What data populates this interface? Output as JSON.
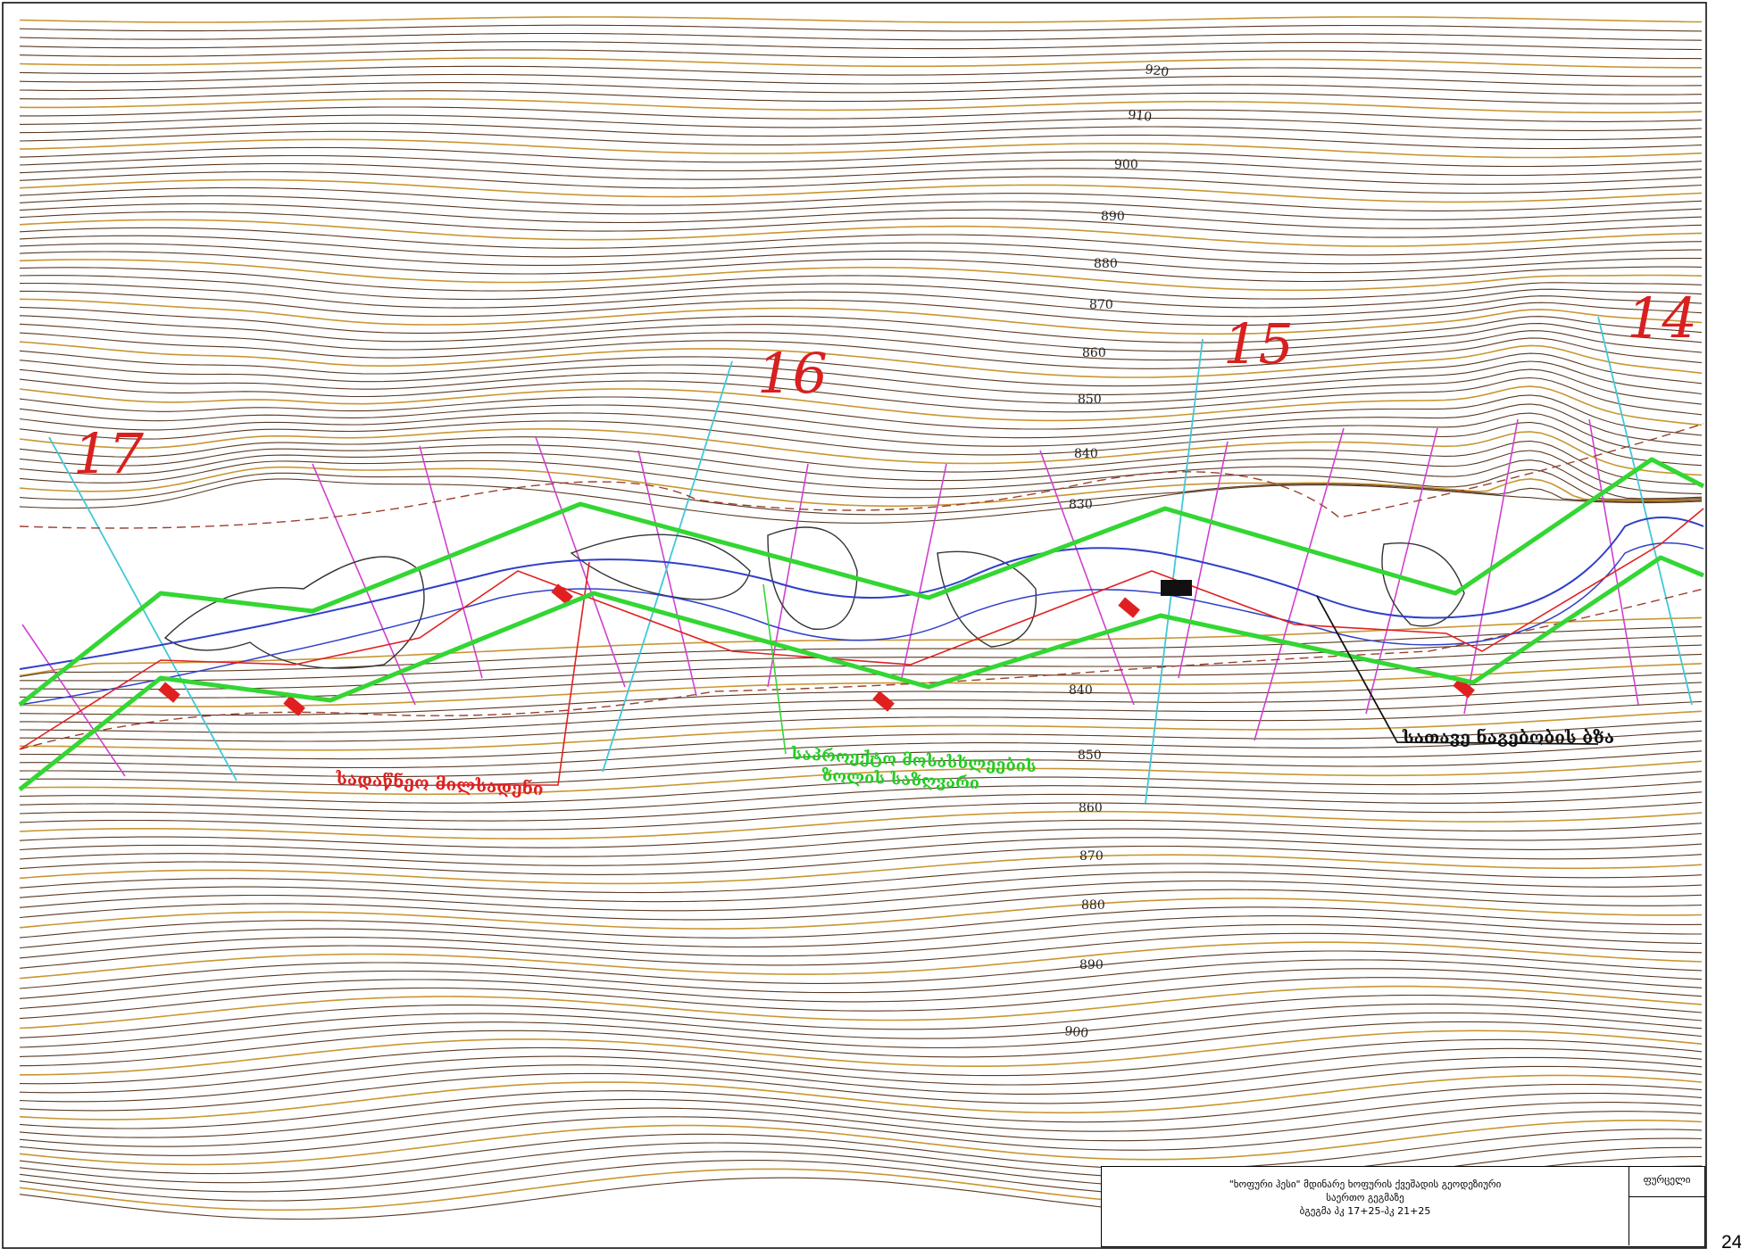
{
  "map": {
    "section_numbers": [
      "17",
      "16",
      "15",
      "14"
    ],
    "upper_elevations": [
      "920",
      "910",
      "900",
      "890",
      "880",
      "870",
      "860",
      "850",
      "840",
      "830"
    ],
    "lower_elevations": [
      "840",
      "850",
      "860",
      "870",
      "880",
      "890",
      "900"
    ],
    "annotations": {
      "red": "სადაწნეო მილსადენი",
      "green_line1": "საპროექტო მოსასხლეების",
      "green_line2": "ზოლის საზღვარი",
      "black": "სათავე ნაგებობის ბზა"
    },
    "colors": {
      "contour_major": "#c89632",
      "contour_minor": "#5a3a22",
      "boundary": "#33d633",
      "river": "#3040c8",
      "pipeline": "#e02020",
      "cross_section": "#d040d0",
      "section_line": "#40c8d8",
      "section_number": "#d82020"
    }
  },
  "title_block": {
    "line1": "\"ხოფური ჰესი\" მდინარე ხოფურის ქვეშადის გეოდეზიური",
    "line2": "საერთო გეგმაზე",
    "line3": "ბგეგმა პკ 17+25-პკ 21+25",
    "side_label": "ფურცელი"
  },
  "page_number": "24"
}
